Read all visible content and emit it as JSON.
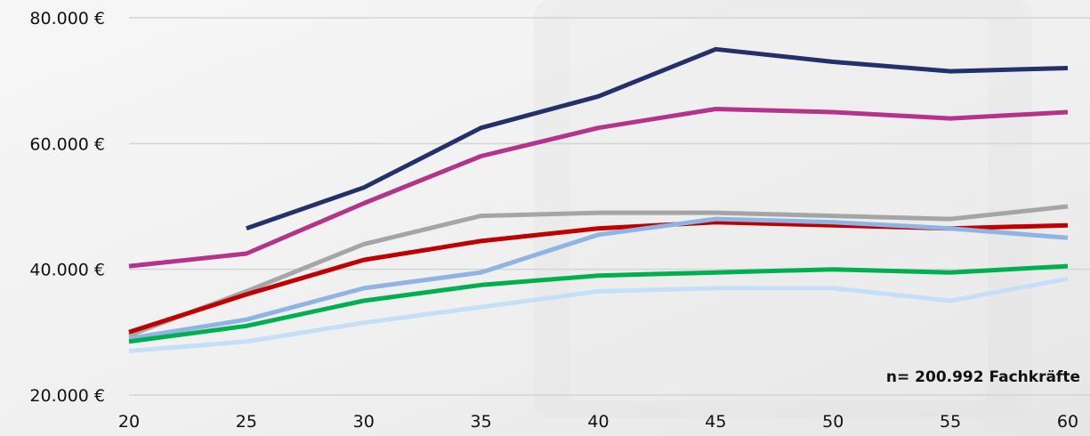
{
  "chart_data": {
    "type": "line",
    "x": [
      20,
      25,
      30,
      35,
      40,
      45,
      50,
      55,
      60
    ],
    "x_tick_labels": [
      "20",
      "25",
      "30",
      "35",
      "40",
      "45",
      "50",
      "55",
      "60"
    ],
    "y_ticks": [
      20000,
      40000,
      60000,
      80000
    ],
    "y_tick_labels": [
      "20.000 €",
      "40.000 €",
      "60.000 €",
      "80.000 €"
    ],
    "ylim": [
      20000,
      80000
    ],
    "xlim": [
      20,
      60
    ],
    "grid": "horizontal",
    "annotation": "n= 200.992 Fachkräfte",
    "series": [
      {
        "color": "#23306b",
        "values": [
          null,
          46500,
          53000,
          62500,
          67500,
          75000,
          73000,
          71500,
          72000
        ]
      },
      {
        "color": "#b3348a",
        "values": [
          40500,
          42500,
          50500,
          58000,
          62500,
          65500,
          65000,
          64000,
          65000
        ]
      },
      {
        "color": "#a5a5a5",
        "values": [
          29500,
          36500,
          44000,
          48500,
          49000,
          49000,
          48500,
          48000,
          50000
        ]
      },
      {
        "color": "#c00000",
        "values": [
          30000,
          36000,
          41500,
          44500,
          46500,
          47500,
          47000,
          46500,
          47000
        ]
      },
      {
        "color": "#8db4e2",
        "values": [
          29000,
          32000,
          37000,
          39500,
          45500,
          48000,
          47500,
          46500,
          45000
        ]
      },
      {
        "color": "#00b050",
        "values": [
          28500,
          31000,
          35000,
          37500,
          39000,
          39500,
          40000,
          39500,
          40500
        ]
      },
      {
        "color": "#c5dff8",
        "values": [
          27000,
          28500,
          31500,
          34000,
          36500,
          37000,
          37000,
          35000,
          38500
        ]
      }
    ]
  }
}
